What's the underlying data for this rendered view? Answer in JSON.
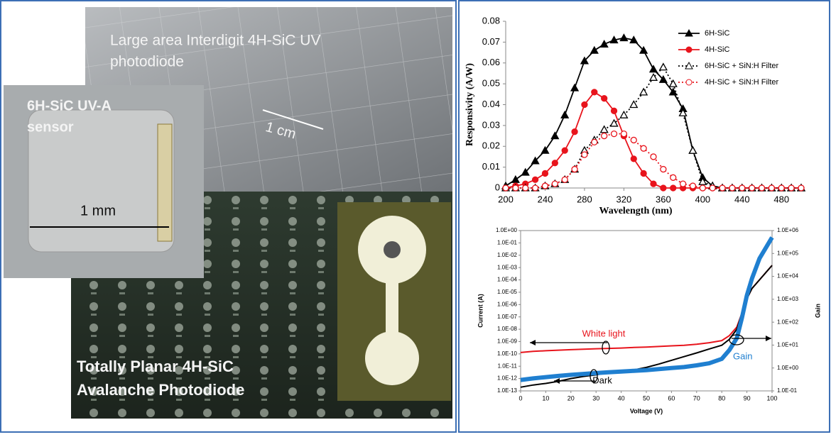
{
  "photos": {
    "labels": [
      {
        "lines": [
          "Large area Interdigit 4H-SiC UV",
          "photodiode"
        ]
      },
      {
        "lines": [
          "1 cm"
        ]
      },
      {
        "lines": [
          "6H-SiC UV-A",
          "sensor"
        ]
      },
      {
        "lines": [
          "1 mm"
        ]
      },
      {
        "lines": [
          "Totally Planar 4H-SiC",
          "Avalanche Photodiode"
        ]
      }
    ]
  },
  "chart_data": [
    {
      "type": "line",
      "xlabel": "Wavelength (nm)",
      "ylabel": "Responsivity  (A/W)",
      "x": [
        200,
        210,
        220,
        230,
        240,
        250,
        260,
        270,
        280,
        290,
        300,
        310,
        320,
        330,
        340,
        350,
        360,
        370,
        380,
        390,
        400,
        410,
        420,
        430,
        440,
        450,
        460,
        470,
        480,
        490,
        500
      ],
      "xlim": [
        200,
        500
      ],
      "xticks": [
        200,
        240,
        280,
        320,
        360,
        400,
        440,
        480
      ],
      "ylim": [
        0,
        0.08
      ],
      "yticks": [
        0,
        0.01,
        0.02,
        0.03,
        0.04,
        0.05,
        0.06,
        0.07,
        0.08
      ],
      "legend": "upper right",
      "series": [
        {
          "name": "6H-SiC",
          "color": "#000000",
          "line_style": "solid",
          "marker": "triangle",
          "marker_fill": true,
          "values": [
            0.001,
            0.004,
            0.0075,
            0.013,
            0.018,
            0.025,
            0.035,
            0.048,
            0.061,
            0.066,
            0.069,
            0.071,
            0.072,
            0.071,
            0.066,
            0.057,
            0.052,
            0.046,
            0.038,
            0.018,
            0.005,
            0.001,
            0,
            0,
            0,
            0,
            0,
            0,
            0,
            0,
            0
          ]
        },
        {
          "name": "4H-SiC",
          "color": "#e8141c",
          "line_style": "solid",
          "marker": "circle",
          "marker_fill": true,
          "values": [
            0,
            0.001,
            0.002,
            0.004,
            0.007,
            0.012,
            0.018,
            0.027,
            0.04,
            0.046,
            0.043,
            0.037,
            0.025,
            0.014,
            0.007,
            0.002,
            0,
            0,
            0,
            0,
            0,
            0,
            0,
            0,
            0,
            0,
            0,
            0,
            0,
            0,
            0
          ]
        },
        {
          "name": "6H-SiC + SiN:H Filter",
          "color": "#000000",
          "line_style": "dotted",
          "marker": "triangle",
          "marker_fill": false,
          "values": [
            0,
            0,
            0,
            0,
            0.001,
            0.002,
            0.004,
            0.009,
            0.018,
            0.023,
            0.028,
            0.031,
            0.035,
            0.04,
            0.046,
            0.053,
            0.058,
            0.05,
            0.036,
            0.018,
            0.003,
            0.001,
            0,
            0,
            0,
            0,
            0,
            0,
            0,
            0,
            0
          ]
        },
        {
          "name": "4H-SiC + SiN:H Filter",
          "color": "#e8141c",
          "line_style": "dotted",
          "marker": "circle",
          "marker_fill": false,
          "values": [
            0,
            0,
            0,
            0,
            0.001,
            0.002,
            0.004,
            0.009,
            0.016,
            0.022,
            0.025,
            0.026,
            0.026,
            0.023,
            0.019,
            0.015,
            0.009,
            0.005,
            0.002,
            0.001,
            0,
            0,
            0,
            0,
            0,
            0,
            0,
            0,
            0,
            0,
            0
          ]
        }
      ]
    },
    {
      "type": "line",
      "xlabel": "Voltage (V)",
      "ylabel": "Current (A)",
      "y2label": "Gain",
      "log_scale": true,
      "x": [
        0,
        5,
        10,
        15,
        20,
        25,
        30,
        35,
        40,
        45,
        50,
        55,
        60,
        65,
        70,
        75,
        80,
        83,
        86,
        88,
        90,
        92,
        95,
        100
      ],
      "xlim": [
        0,
        100
      ],
      "xticks": [
        0,
        10,
        20,
        30,
        40,
        50,
        60,
        70,
        80,
        90,
        100
      ],
      "ylim": [
        1e-13,
        1
      ],
      "yticks": [
        {
          "value": 1e-13,
          "label": "1.0E-13"
        },
        {
          "value": 1e-12,
          "label": "1.0E-12"
        },
        {
          "value": 1e-11,
          "label": "1.0E-11"
        },
        {
          "value": 1e-10,
          "label": "1.0E-10"
        },
        {
          "value": 1e-09,
          "label": "1.0E-09"
        },
        {
          "value": 1e-08,
          "label": "1.0E-08"
        },
        {
          "value": 1e-07,
          "label": "1.0E-07"
        },
        {
          "value": 1e-06,
          "label": "1.0E-06"
        },
        {
          "value": 1e-05,
          "label": "1.0E-05"
        },
        {
          "value": 0.0001,
          "label": "1.0E-04"
        },
        {
          "value": 0.001,
          "label": "1.0E-03"
        },
        {
          "value": 0.01,
          "label": "1.0E-02"
        },
        {
          "value": 0.1,
          "label": "1.0E-01"
        },
        {
          "value": 1,
          "label": "1.0E+00"
        }
      ],
      "y2lim": [
        0.1,
        1000000
      ],
      "y2ticks": [
        {
          "value": 0.1,
          "label": "1.0E-01"
        },
        {
          "value": 1,
          "label": "1.0E+00"
        },
        {
          "value": 10,
          "label": "1.0E+01"
        },
        {
          "value": 100,
          "label": "1.0E+02"
        },
        {
          "value": 1000,
          "label": "1.0E+03"
        },
        {
          "value": 10000,
          "label": "1.0E+04"
        },
        {
          "value": 100000,
          "label": "1.0E+05"
        },
        {
          "value": 1000000,
          "label": "1.0E+06"
        }
      ],
      "annotations": [
        "White light",
        "Dark",
        "Gain"
      ],
      "series": [
        {
          "name": "White light",
          "color": "#e8141c",
          "width": 2,
          "values": [
            1.3e-10,
            1.6e-10,
            1.8e-10,
            2e-10,
            2.2e-10,
            2.4e-10,
            2.6e-10,
            2.8e-10,
            3e-10,
            3.3e-10,
            3.6e-10,
            4e-10,
            4.5e-10,
            5e-10,
            6e-10,
            8e-10,
            1.2e-09,
            3e-09,
            1.5e-08,
            2e-07,
            3e-06,
            2e-05,
            0.0001,
            0.0015
          ]
        },
        {
          "name": "Dark",
          "color": "#000000",
          "width": 2,
          "values": [
            2e-13,
            3e-13,
            4e-13,
            6e-13,
            1e-12,
            1.5e-12,
            2e-12,
            3e-12,
            4e-12,
            5e-12,
            8e-12,
            1.5e-11,
            3e-11,
            6e-11,
            1.2e-10,
            2.5e-10,
            5e-10,
            1.5e-09,
            1e-08,
            2e-07,
            3e-06,
            2e-05,
            0.0001,
            0.0015
          ]
        },
        {
          "name": "Gain",
          "color": "#1f7fd0",
          "width": 6,
          "axis": "y2",
          "values": [
            0.3,
            0.35,
            0.4,
            0.45,
            0.5,
            0.55,
            0.6,
            0.65,
            0.7,
            0.75,
            0.8,
            0.9,
            1,
            1.1,
            1.3,
            1.6,
            2.5,
            6,
            20,
            150,
            1500,
            8000,
            60000,
            500000
          ]
        }
      ]
    }
  ]
}
